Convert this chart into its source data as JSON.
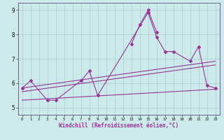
{
  "background_color": "#cceaea",
  "grid_color": "#aacccc",
  "line_color": "#993399",
  "spine_color": "#666688",
  "xlim": [
    -0.5,
    23.5
  ],
  "ylim": [
    4.7,
    9.3
  ],
  "yticks": [
    5,
    6,
    7,
    8,
    9
  ],
  "xticks": [
    0,
    1,
    2,
    3,
    4,
    5,
    6,
    7,
    8,
    9,
    10,
    11,
    12,
    13,
    14,
    15,
    16,
    17,
    18,
    19,
    20,
    21,
    22,
    23
  ],
  "xlabel": "Windchill (Refroidissement éolien,°C)",
  "series1_x": [
    0,
    1,
    3,
    4,
    7,
    8,
    9,
    15,
    16,
    17,
    18,
    20,
    21,
    22,
    23
  ],
  "series1_y": [
    5.8,
    6.1,
    5.3,
    5.3,
    6.1,
    6.5,
    5.5,
    8.9,
    7.9,
    7.3,
    7.3,
    6.9,
    7.5,
    5.9,
    5.8
  ],
  "series2_x": [
    13,
    14,
    15,
    16
  ],
  "series2_y": [
    7.6,
    8.4,
    9.0,
    8.1
  ],
  "trend1_x": [
    0,
    23
  ],
  "trend1_y": [
    5.3,
    5.75
  ],
  "trend2_x": [
    0,
    23
  ],
  "trend2_y": [
    5.65,
    6.75
  ],
  "trend3_x": [
    0,
    23
  ],
  "trend3_y": [
    5.8,
    6.9
  ]
}
